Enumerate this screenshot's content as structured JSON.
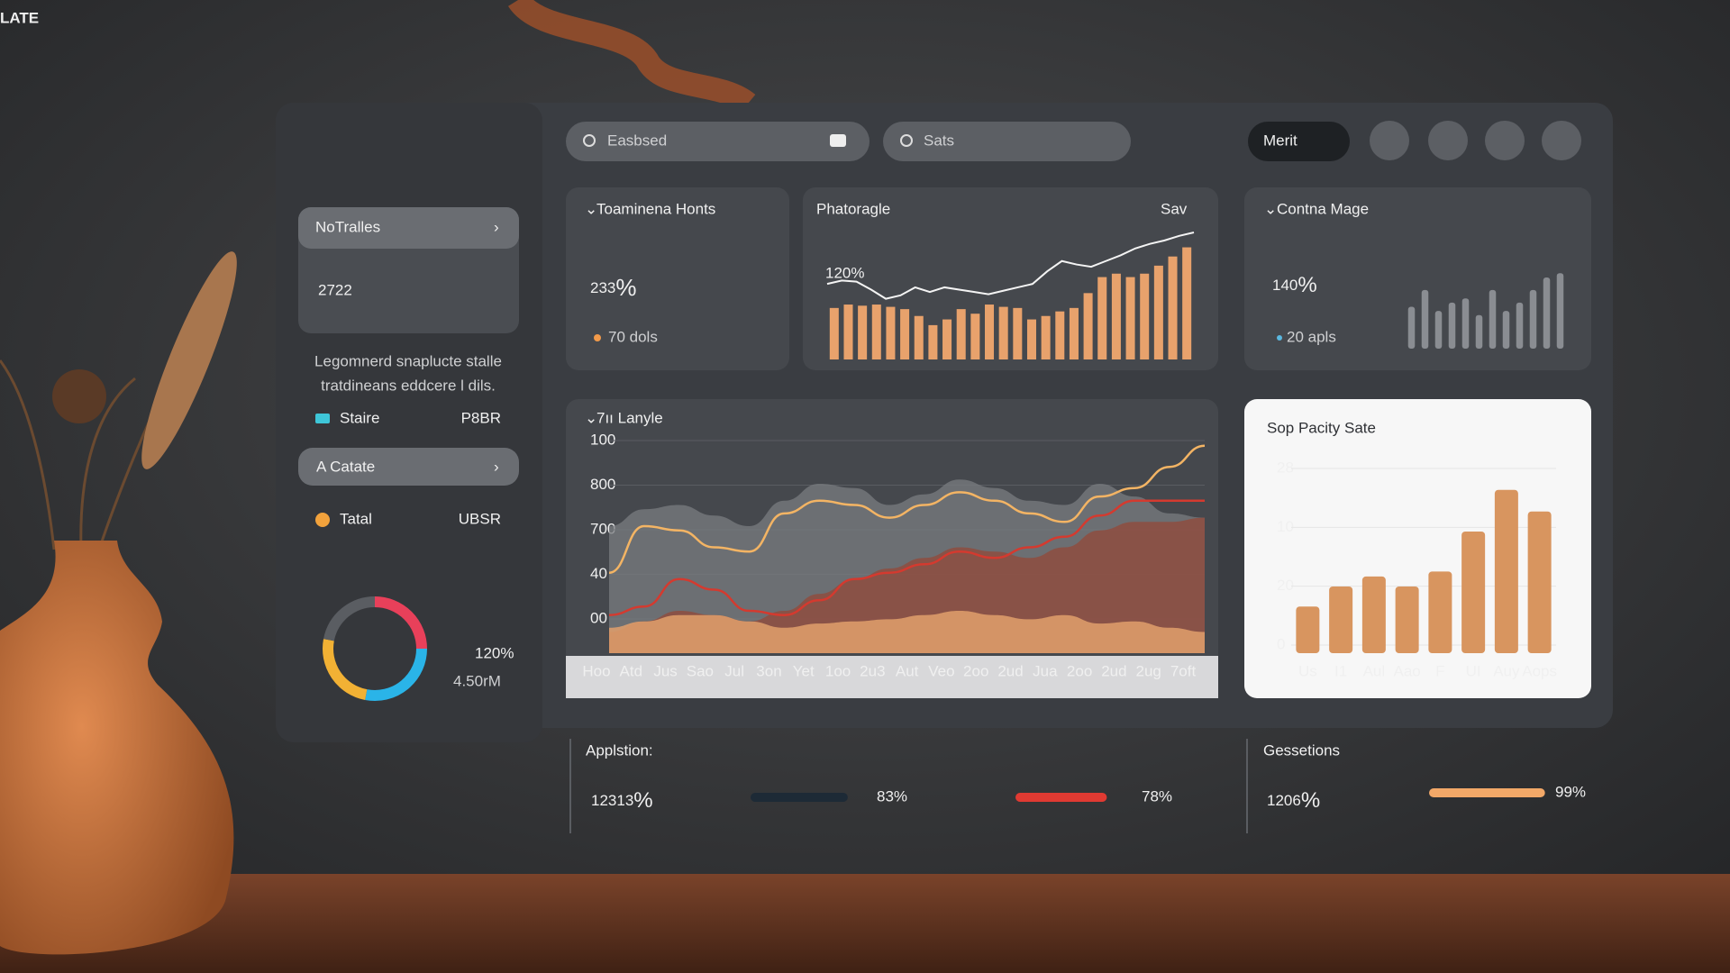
{
  "brand": "LATE",
  "search": [
    {
      "placeholder": "Easbsed"
    },
    {
      "placeholder": "Sats"
    }
  ],
  "toolbar": {
    "button": "Merit"
  },
  "sidebar": {
    "card": {
      "title": "NoTralles",
      "value": "2722"
    },
    "description": [
      "Legomnerd snaplucte stalle",
      "tratdineans eddcere l dils."
    ],
    "rows": [
      {
        "label": "Staire",
        "value": "P8BR"
      },
      {
        "label": "Tatal",
        "value": "UBSR"
      }
    ],
    "button": "A Catate",
    "donut": {
      "values": [
        25,
        28,
        25,
        22
      ],
      "colors": [
        "#e8405a",
        "#2ab4e8",
        "#f2b134",
        "#5a5d62"
      ],
      "label": "120%",
      "sublabel": "4.50rM"
    }
  },
  "cards": [
    {
      "title": "Toaminena Honts",
      "value": "233",
      "unit": "%",
      "note": "70 dols"
    },
    {
      "title": "Phatoragle",
      "menu": "Sav",
      "value": "120%",
      "ylim": [
        0,
        100
      ],
      "bars": [
        45,
        48,
        47,
        48,
        46,
        44,
        38,
        30,
        35,
        44,
        40,
        48,
        46,
        45,
        35,
        38,
        42,
        45,
        58,
        72,
        75,
        72,
        75,
        82,
        90,
        98
      ],
      "line": [
        55,
        58,
        57,
        50,
        42,
        45,
        52,
        48,
        52,
        50,
        48,
        46,
        49,
        52,
        55,
        66,
        75,
        72,
        70,
        75,
        80,
        86,
        90,
        93,
        97,
        100
      ]
    },
    {
      "title": "Contna Mage",
      "value": "140",
      "unit": "%",
      "note": "20 apls",
      "ylim": [
        0,
        100
      ],
      "bars": [
        50,
        70,
        45,
        55,
        60,
        40,
        70,
        45,
        55,
        70,
        85,
        90
      ]
    }
  ],
  "chart": {
    "type": "area",
    "title": "7ıı Lanyle",
    "ylim": [
      0,
      100
    ],
    "y_labels": [
      "100",
      "800",
      "700",
      "40",
      "00"
    ],
    "categories": [
      "Hoo",
      "Atd",
      "Jus",
      "Sao",
      "Jul",
      "3on",
      "Yet",
      "1oo",
      "2u3",
      "Aut",
      "Veo",
      "2oo",
      "2ud",
      "Jua",
      "2oo",
      "2ud",
      "2ug",
      "7oft"
    ],
    "series": [
      {
        "color": "#7a7c80",
        "values": [
          60,
          68,
          70,
          65,
          60,
          72,
          80,
          78,
          70,
          75,
          82,
          78,
          72,
          70,
          80,
          74,
          66,
          64
        ]
      },
      {
        "color": "#8e4d40",
        "values": [
          10,
          15,
          20,
          18,
          15,
          20,
          28,
          35,
          40,
          45,
          50,
          48,
          45,
          50,
          58,
          62,
          62,
          64
        ]
      },
      {
        "color": "#e2a06c",
        "values": [
          12,
          15,
          18,
          18,
          15,
          12,
          14,
          15,
          16,
          18,
          20,
          18,
          16,
          18,
          14,
          15,
          12,
          10
        ]
      },
      {
        "color": "#d43a2f",
        "values": [
          18,
          22,
          35,
          30,
          20,
          18,
          25,
          35,
          38,
          42,
          48,
          45,
          50,
          55,
          65,
          72,
          72,
          72
        ]
      },
      {
        "color": "#f3b464",
        "values": [
          38,
          60,
          58,
          50,
          48,
          66,
          72,
          70,
          64,
          70,
          76,
          72,
          66,
          62,
          74,
          78,
          88,
          98
        ]
      }
    ]
  },
  "bar_chart": {
    "type": "bar",
    "title": "Sop Pacity Sate",
    "ylim": [
      0,
      100
    ],
    "y_labels": [
      "28",
      "10",
      "20",
      "0"
    ],
    "categories": [
      "Us",
      "I1",
      "Aul",
      "Aao",
      "F",
      "UI",
      "Auy",
      "Aops"
    ],
    "values": [
      28,
      40,
      46,
      40,
      49,
      73,
      98,
      85
    ],
    "color": "#d8955f"
  },
  "footer": [
    {
      "title": "Applstion:",
      "value": "12313",
      "unit": "%",
      "bars": [
        {
          "value": 83,
          "label": "83%",
          "color": "#1d2a36"
        },
        {
          "value": 78,
          "label": "78%",
          "color": "#e03a32"
        }
      ]
    },
    {
      "title": "Gessetions",
      "value": "1206",
      "unit": "%",
      "bars": [
        {
          "value": 99,
          "label": "99%",
          "color": "#f2a868"
        }
      ]
    }
  ]
}
